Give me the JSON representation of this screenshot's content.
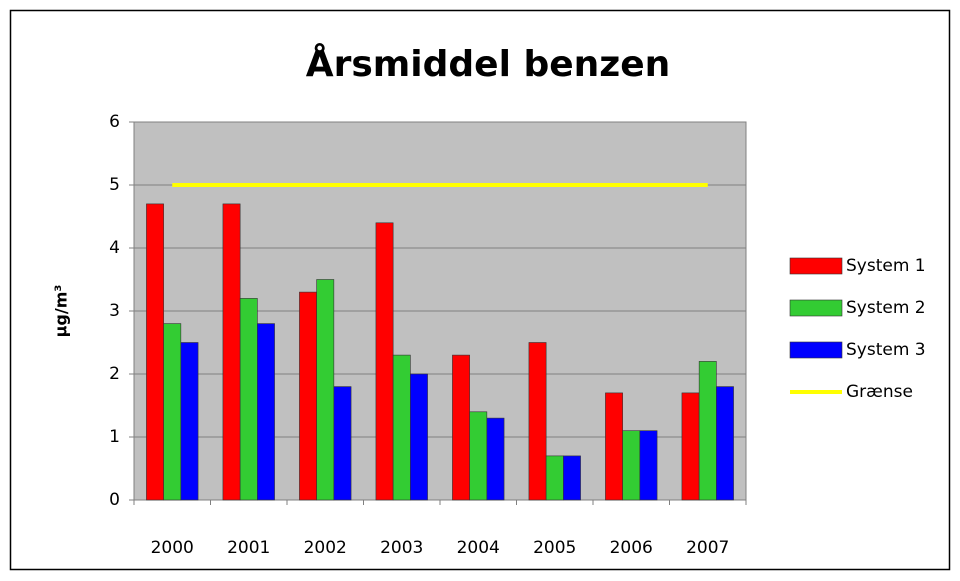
{
  "chart_data": {
    "type": "bar",
    "title": "Årsmiddel benzen",
    "y_label": "μg/m³",
    "categories": [
      "2000",
      "2001",
      "2002",
      "2003",
      "2004",
      "2005",
      "2006",
      "2007"
    ],
    "series": [
      {
        "name": "System 1",
        "color": "#ff0000",
        "values": [
          4.7,
          4.7,
          3.3,
          4.4,
          2.3,
          2.5,
          1.7,
          1.7
        ]
      },
      {
        "name": "System 2",
        "color": "#33cc33",
        "values": [
          2.8,
          3.2,
          3.5,
          2.3,
          1.4,
          0.7,
          1.1,
          2.2
        ]
      },
      {
        "name": "System 3",
        "color": "#0000ff",
        "values": [
          2.5,
          2.8,
          1.8,
          2.0,
          1.3,
          0.7,
          1.1,
          1.8
        ]
      },
      {
        "name": "Grænse",
        "color": "#ffff00",
        "type": "line",
        "values": [
          5,
          5,
          5,
          5,
          5,
          5,
          5,
          5
        ]
      }
    ],
    "ylim": [
      0,
      6
    ],
    "yticks": [
      0,
      1,
      2,
      3,
      4,
      5,
      6
    ],
    "grid": true,
    "legend": "right"
  }
}
